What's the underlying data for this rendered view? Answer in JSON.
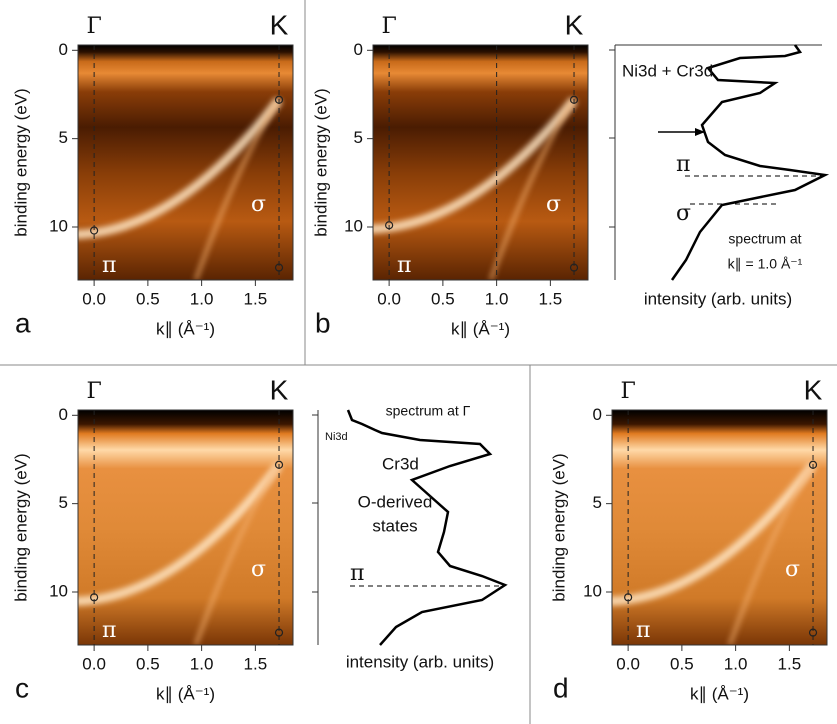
{
  "chart_data": [
    {
      "type": "heatmap",
      "panel": "a",
      "x_label": "k∥ (Å⁻¹)",
      "y_label": "binding energy (eV)",
      "xlim": [
        -0.15,
        1.85
      ],
      "ylim": [
        13,
        -0.3
      ],
      "xticks": [
        {
          "value": 0,
          "label": "0.0"
        },
        0.5,
        {
          "value": 1,
          "label": "1.0"
        },
        1.5
      ],
      "yticks": [
        0,
        5,
        10
      ],
      "top_labels": [
        "Γ",
        "K"
      ],
      "band_labels": [
        "π",
        "σ"
      ],
      "vlines": [
        0,
        1.72
      ],
      "points": {
        "x": [
          0,
          1.72,
          1.72
        ],
        "y": [
          10.2,
          2.8,
          12.3
        ]
      }
    },
    {
      "type": "heatmap",
      "panel": "b",
      "x_label": "k∥ (Å⁻¹)",
      "y_label": "binding energy (eV)",
      "xlim": [
        -0.15,
        1.85
      ],
      "ylim": [
        13,
        -0.3
      ],
      "xticks": [
        {
          "value": 0,
          "label": "0.0"
        },
        0.5,
        {
          "value": 1,
          "label": "1.0"
        },
        1.5
      ],
      "yticks": [
        0,
        5,
        10
      ],
      "top_labels": [
        "Γ",
        "K"
      ],
      "band_labels": [
        "π",
        "σ"
      ],
      "vlines": [
        0,
        1.0,
        1.72
      ],
      "points": {
        "x": [
          0,
          1.72,
          1.72
        ],
        "y": [
          9.9,
          2.8,
          12.3
        ]
      }
    },
    {
      "type": "spectrum",
      "x_label": "intensity (arb. units)",
      "annotations": [
        "Ni3d + Cr3d",
        "π",
        "σ",
        "spectrum at",
        "k∥ = 1.0 Å⁻¹"
      ]
    },
    {
      "type": "heatmap",
      "panel": "c",
      "x_label": "k∥ (Å⁻¹)",
      "y_label": "binding energy (eV)",
      "xlim": [
        -0.15,
        1.85
      ],
      "ylim": [
        13,
        -0.3
      ],
      "xticks": [
        {
          "value": 0,
          "label": "0.0"
        },
        0.5,
        {
          "value": 1,
          "label": "1.0"
        },
        1.5
      ],
      "yticks": [
        0,
        5,
        10
      ],
      "top_labels": [
        "Γ",
        "K"
      ],
      "band_labels": [
        "π",
        "σ"
      ],
      "vlines": [
        0,
        1.72
      ],
      "points": {
        "x": [
          0,
          1.72,
          1.72
        ],
        "y": [
          10.3,
          2.8,
          12.3
        ]
      }
    },
    {
      "type": "spectrum",
      "x_label": "intensity (arb. units)",
      "annotations": [
        "spectrum at Γ",
        "Ni3d",
        "Cr3d",
        "O-derived",
        "states",
        "π"
      ]
    },
    {
      "type": "heatmap",
      "panel": "d",
      "x_label": "k∥ (Å⁻¹)",
      "y_label": "binding energy (eV)",
      "xlim": [
        -0.15,
        1.85
      ],
      "ylim": [
        13,
        -0.3
      ],
      "xticks": [
        {
          "value": 0,
          "label": "0.0"
        },
        0.5,
        {
          "value": 1,
          "label": "1.0"
        },
        1.5
      ],
      "yticks": [
        0,
        5,
        10
      ],
      "top_labels": [
        "Γ",
        "K"
      ],
      "band_labels": [
        "π",
        "σ"
      ],
      "vlines": [
        0,
        1.72
      ],
      "points": {
        "x": [
          0,
          1.72,
          1.72
        ],
        "y": [
          10.3,
          2.8,
          12.3
        ]
      }
    }
  ]
}
